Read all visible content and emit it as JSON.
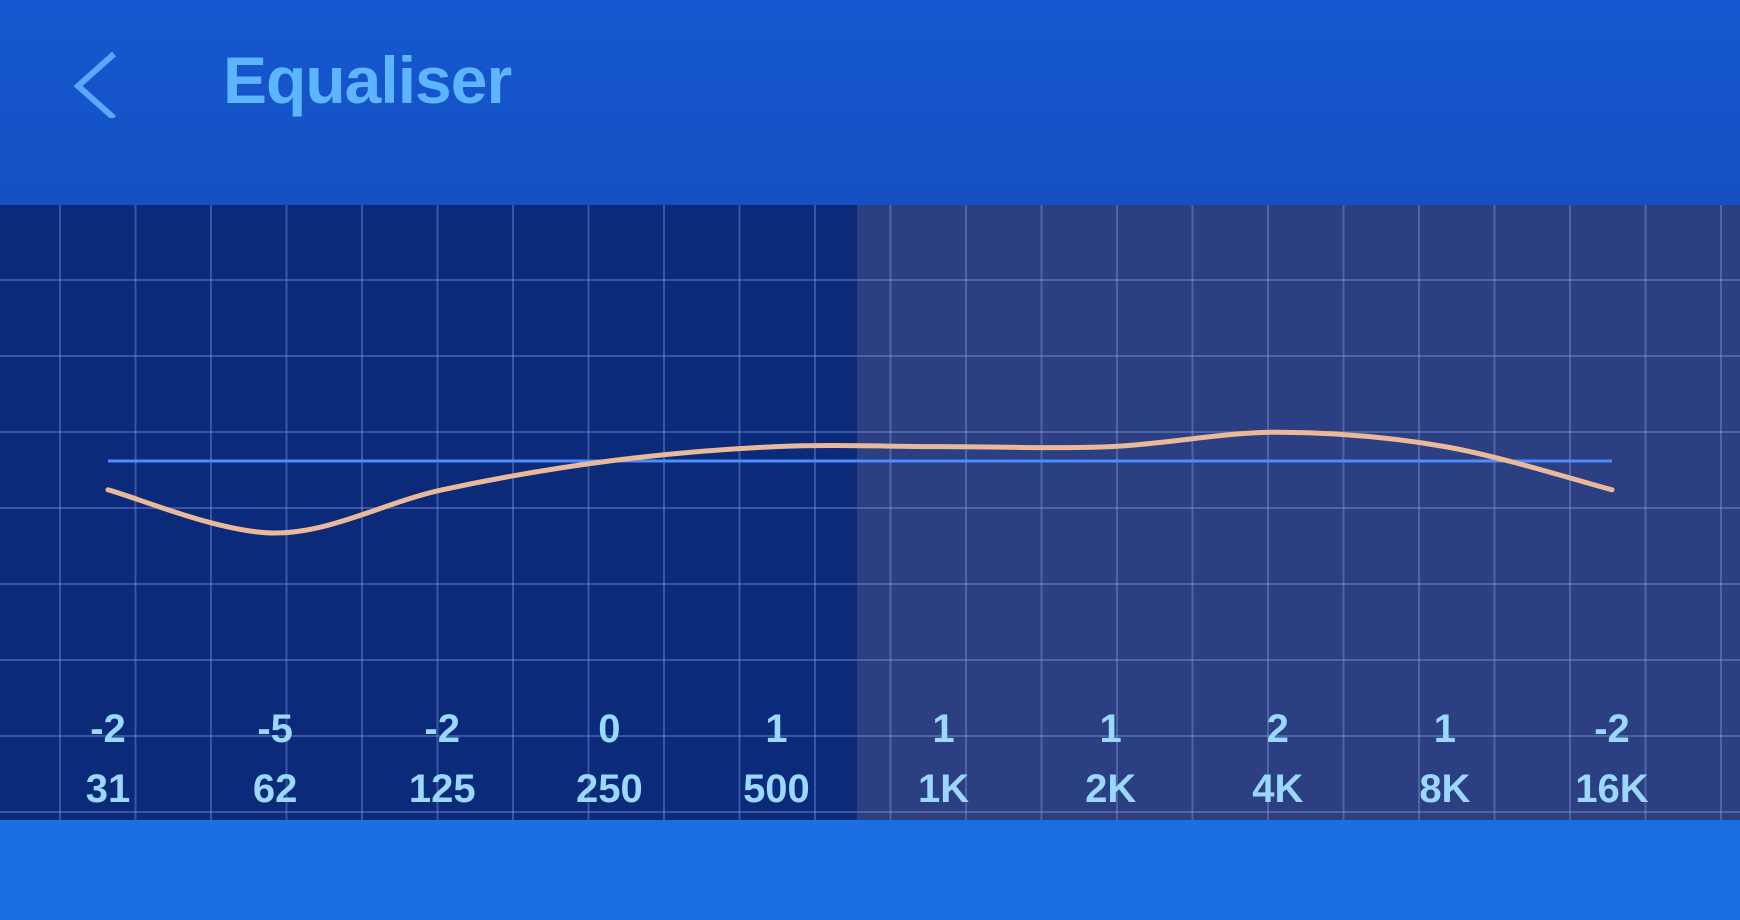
{
  "header": {
    "title": "Equaliser",
    "back_icon": "chevron-left-icon"
  },
  "colors": {
    "curve": "#e9b99a",
    "baseline": "#4b8cff",
    "label": "#9ad8ff",
    "panel_left": "#0c2a7a",
    "panel_right": "#2b3f82"
  },
  "chart_data": {
    "type": "line",
    "title": "",
    "bands": [
      "31",
      "62",
      "125",
      "250",
      "500",
      "1K",
      "2K",
      "4K",
      "8K",
      "16K"
    ],
    "values": [
      -2,
      -5,
      -2,
      0,
      1,
      1,
      1,
      2,
      1,
      -2
    ],
    "value_labels": [
      "-2",
      "-5",
      "-2",
      "0",
      "1",
      "1",
      "1",
      "2",
      "1",
      "-2"
    ],
    "grid": true
  }
}
